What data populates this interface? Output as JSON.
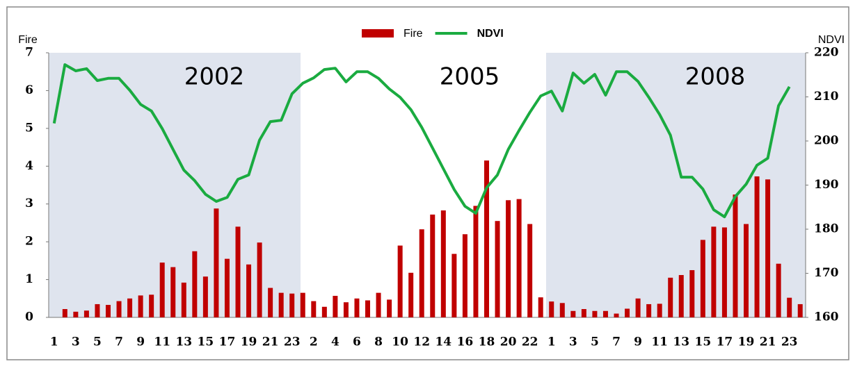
{
  "chart_data": {
    "type": "bar-line",
    "y_label": "Fire",
    "y2_label": "NDVI",
    "annotations": [
      "2002",
      "2005",
      "2008"
    ],
    "categories": [
      "1",
      null,
      "3",
      null,
      "5",
      null,
      "7",
      null,
      "9",
      null,
      "11",
      null,
      "13",
      null,
      "15",
      null,
      "17",
      null,
      "19",
      null,
      "21",
      null,
      "23",
      null,
      "2",
      null,
      "4",
      null,
      "6",
      null,
      "8",
      null,
      "10",
      null,
      "12",
      null,
      "14",
      null,
      "16",
      null,
      "18",
      null,
      "20",
      null,
      "22",
      null,
      "1",
      null,
      "3",
      null,
      "5",
      null,
      "7",
      null,
      "9",
      null,
      "11",
      null,
      "13",
      null,
      "15",
      null,
      "17",
      null,
      "19",
      null,
      "21",
      null,
      "23",
      null
    ],
    "series": [
      {
        "name": "Fire",
        "type": "bar",
        "color": "#c00000",
        "values": [
          0,
          0.22,
          0.15,
          0.18,
          0.35,
          0.33,
          0.43,
          0.5,
          0.58,
          0.6,
          1.45,
          1.33,
          0.92,
          1.75,
          1.08,
          2.88,
          1.55,
          2.4,
          1.4,
          1.98,
          0.78,
          0.65,
          0.63,
          0.65,
          0.43,
          0.28,
          0.57,
          0.4,
          0.5,
          0.45,
          0.65,
          0.47,
          1.9,
          1.18,
          2.33,
          2.72,
          2.83,
          1.68,
          2.2,
          2.95,
          4.15,
          2.55,
          3.1,
          3.13,
          2.47,
          0.53,
          0.42,
          0.38,
          0.17,
          0.22,
          0.17,
          0.17,
          0.1,
          0.23,
          0.5,
          0.35,
          0.36,
          1.05,
          1.12,
          1.25,
          2.05,
          2.4,
          2.38,
          3.25,
          2.47,
          3.73,
          3.65,
          1.42,
          0.52,
          0.35
        ]
      },
      {
        "name": "NDVI",
        "type": "line",
        "axis": "y2",
        "color": "#1aab40",
        "values": [
          204,
          217.3,
          215.9,
          216.4,
          213.7,
          214.2,
          214.2,
          211.5,
          208.3,
          206.8,
          202.8,
          198.1,
          193.4,
          191,
          187.9,
          186.3,
          187.2,
          191.3,
          192.3,
          200.2,
          204.4,
          204.7,
          210.7,
          213.1,
          214.3,
          216.2,
          216.5,
          213.4,
          215.7,
          215.7,
          214.2,
          211.8,
          209.9,
          207.1,
          203.1,
          198.4,
          193.7,
          189,
          185.2,
          183.6,
          189.4,
          192.3,
          198.1,
          202.4,
          206.5,
          210.2,
          211.3,
          206.8,
          215.4,
          213.1,
          215.1,
          210.4,
          215.7,
          215.7,
          213.5,
          209.9,
          206,
          201.3,
          191.8,
          191.8,
          189.1,
          184.4,
          182.8,
          187.4,
          190.2,
          194.5,
          196.1,
          208,
          212.3,
          null
        ]
      }
    ],
    "ylim": [
      0,
      7
    ],
    "yticks": [
      0,
      1,
      2,
      3,
      4,
      5,
      6,
      7
    ],
    "y2lim": [
      160,
      220
    ],
    "y2ticks": [
      160,
      170,
      180,
      190,
      200,
      210,
      220
    ],
    "grid": false,
    "legend": "top"
  }
}
